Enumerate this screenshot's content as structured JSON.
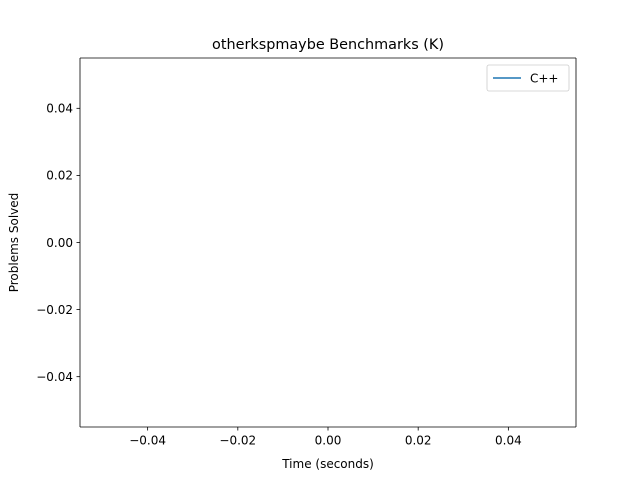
{
  "chart_data": {
    "type": "line",
    "title": "otherkspmaybe Benchmarks (K)",
    "xlabel": "Time (seconds)",
    "ylabel": "Problems Solved",
    "xlim": [
      -0.055,
      0.055
    ],
    "ylim": [
      -0.055,
      0.055
    ],
    "xticks": [
      -0.04,
      -0.02,
      0.0,
      0.02,
      0.04
    ],
    "xtick_labels": [
      "−0.04",
      "−0.02",
      "0.00",
      "0.02",
      "0.04"
    ],
    "yticks": [
      -0.04,
      -0.02,
      0.0,
      0.02,
      0.04
    ],
    "ytick_labels": [
      "−0.04",
      "−0.02",
      "0.00",
      "0.02",
      "0.04"
    ],
    "grid": false,
    "legend_position": "top-right",
    "series": [
      {
        "name": "C++",
        "color": "#1f77b4",
        "x": [],
        "y": []
      }
    ]
  }
}
